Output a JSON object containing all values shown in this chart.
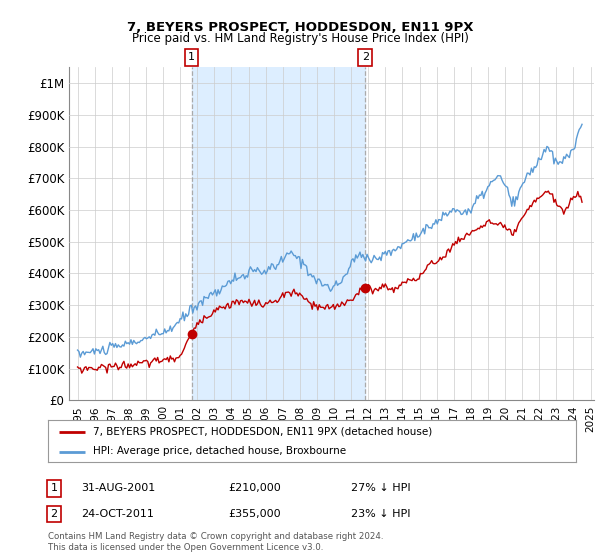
{
  "title": "7, BEYERS PROSPECT, HODDESDON, EN11 9PX",
  "subtitle": "Price paid vs. HM Land Registry's House Price Index (HPI)",
  "hpi_color": "#5b9bd5",
  "price_color": "#c00000",
  "vline_color": "#aaaaaa",
  "shade_color": "#ddeeff",
  "purchase1_year": 2001.67,
  "purchase1_price": 210000,
  "purchase2_year": 2011.82,
  "purchase2_price": 355000,
  "legend_price_label": "7, BEYERS PROSPECT, HODDESDON, EN11 9PX (detached house)",
  "legend_hpi_label": "HPI: Average price, detached house, Broxbourne",
  "footer": "Contains HM Land Registry data © Crown copyright and database right 2024.\nThis data is licensed under the Open Government Licence v3.0.",
  "background_color": "#ffffff",
  "grid_color": "#cccccc",
  "ylim": [
    0,
    1050000
  ],
  "yticks": [
    0,
    100000,
    200000,
    300000,
    400000,
    500000,
    600000,
    700000,
    800000,
    900000,
    1000000
  ],
  "ytick_labels": [
    "£0",
    "£100K",
    "£200K",
    "£300K",
    "£400K",
    "£500K",
    "£600K",
    "£700K",
    "£800K",
    "£900K",
    "£1M"
  ],
  "xlim": [
    1994.5,
    2025.2
  ],
  "xtick_years": [
    1995,
    1996,
    1997,
    1998,
    1999,
    2000,
    2001,
    2002,
    2003,
    2004,
    2005,
    2006,
    2007,
    2008,
    2009,
    2010,
    2011,
    2012,
    2013,
    2014,
    2015,
    2016,
    2017,
    2018,
    2019,
    2020,
    2021,
    2022,
    2023,
    2024,
    2025
  ]
}
